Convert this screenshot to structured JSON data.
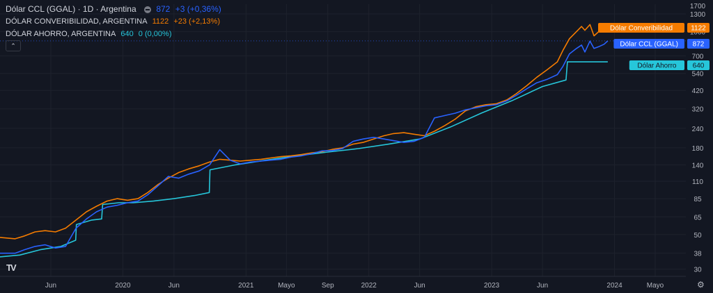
{
  "legend": {
    "main_title": "Dólar CCL (GGAL) · 1D · Argentina",
    "main_value": "872",
    "main_change": "+3 (+0,36%)",
    "conv_label": "DÓLAR CONVERIBILIDAD, ARGENTINA",
    "conv_value": "1122",
    "conv_change": "+23 (+2,13%)",
    "ahorro_label": "DÓLAR AHORRO, ARGENTINA",
    "ahorro_value": "640",
    "ahorro_change": "0 (0,00%)",
    "collapse_icon": "chevron-up-icon"
  },
  "colors": {
    "background": "#131722",
    "grid": "#1e222d",
    "ccl": "#2962ff",
    "conv": "#f57c00",
    "ahorro": "#26c6da",
    "axis_text": "#b2b5be"
  },
  "chart_data": {
    "type": "line",
    "y_scale": "log",
    "ylim": [
      27,
      1500
    ],
    "xlim": [
      "2019-01-01",
      "2024-07-31"
    ],
    "y_ticks": [
      30,
      38,
      50,
      65,
      85,
      110,
      140,
      180,
      240,
      320,
      420,
      540,
      700,
      1000,
      1300
    ],
    "y_tick_labels": [
      "30",
      "38",
      "50",
      "65",
      "85",
      "110",
      "140",
      "180",
      "240",
      "320",
      "420",
      "540",
      "700",
      "1000",
      "1300"
    ],
    "top_tick_label": "1700",
    "x_ticks": [
      {
        "date": "2019-06-01",
        "label": "Jun"
      },
      {
        "date": "2020-01-01",
        "label": "2020"
      },
      {
        "date": "2020-06-01",
        "label": "Jun"
      },
      {
        "date": "2021-01-01",
        "label": "2021"
      },
      {
        "date": "2021-05-01",
        "label": "Mayo"
      },
      {
        "date": "2021-09-01",
        "label": "Sep"
      },
      {
        "date": "2022-01-01",
        "label": "2022"
      },
      {
        "date": "2022-06-01",
        "label": "Jun"
      },
      {
        "date": "2023-01-01",
        "label": "2023"
      },
      {
        "date": "2023-06-01",
        "label": "Jun"
      },
      {
        "date": "2024-01-01",
        "label": "2024"
      },
      {
        "date": "2024-05-01",
        "label": "Mayo"
      }
    ],
    "series": [
      {
        "name": "Dólar Converibilidad",
        "last": "1122",
        "points": [
          [
            "2019-01-01",
            48
          ],
          [
            "2019-02-15",
            47
          ],
          [
            "2019-03-15",
            49
          ],
          [
            "2019-04-15",
            52
          ],
          [
            "2019-05-15",
            53
          ],
          [
            "2019-06-15",
            52
          ],
          [
            "2019-07-15",
            55
          ],
          [
            "2019-08-15",
            62
          ],
          [
            "2019-09-15",
            70
          ],
          [
            "2019-10-15",
            76
          ],
          [
            "2019-11-15",
            82
          ],
          [
            "2019-12-15",
            85
          ],
          [
            "2020-01-15",
            83
          ],
          [
            "2020-02-15",
            85
          ],
          [
            "2020-03-15",
            93
          ],
          [
            "2020-04-15",
            105
          ],
          [
            "2020-05-15",
            115
          ],
          [
            "2020-06-15",
            125
          ],
          [
            "2020-07-15",
            132
          ],
          [
            "2020-08-15",
            138
          ],
          [
            "2020-09-15",
            146
          ],
          [
            "2020-10-15",
            152
          ],
          [
            "2020-11-15",
            150
          ],
          [
            "2020-12-15",
            148
          ],
          [
            "2021-01-15",
            150
          ],
          [
            "2021-02-15",
            152
          ],
          [
            "2021-03-15",
            155
          ],
          [
            "2021-04-15",
            158
          ],
          [
            "2021-05-15",
            160
          ],
          [
            "2021-06-15",
            163
          ],
          [
            "2021-07-15",
            167
          ],
          [
            "2021-08-15",
            170
          ],
          [
            "2021-09-15",
            176
          ],
          [
            "2021-10-15",
            180
          ],
          [
            "2021-11-15",
            190
          ],
          [
            "2021-12-15",
            195
          ],
          [
            "2022-01-15",
            205
          ],
          [
            "2022-02-15",
            215
          ],
          [
            "2022-03-15",
            222
          ],
          [
            "2022-04-15",
            225
          ],
          [
            "2022-05-15",
            220
          ],
          [
            "2022-06-15",
            215
          ],
          [
            "2022-07-15",
            230
          ],
          [
            "2022-08-15",
            250
          ],
          [
            "2022-09-15",
            275
          ],
          [
            "2022-10-15",
            310
          ],
          [
            "2022-11-15",
            330
          ],
          [
            "2022-12-15",
            340
          ],
          [
            "2023-01-15",
            345
          ],
          [
            "2023-02-15",
            365
          ],
          [
            "2023-03-15",
            400
          ],
          [
            "2023-04-15",
            450
          ],
          [
            "2023-05-15",
            510
          ],
          [
            "2023-06-15",
            570
          ],
          [
            "2023-07-15",
            640
          ],
          [
            "2023-08-01",
            760
          ],
          [
            "2023-08-20",
            900
          ],
          [
            "2023-09-10",
            1000
          ],
          [
            "2023-09-25",
            1080
          ],
          [
            "2023-10-05",
            1020
          ],
          [
            "2023-10-20",
            1110
          ],
          [
            "2023-11-01",
            940
          ],
          [
            "2023-11-15",
            1000
          ],
          [
            "2023-12-01",
            1060
          ],
          [
            "2023-12-12",
            1122
          ]
        ]
      },
      {
        "name": "Dólar CCL (GGAL)",
        "last": "872",
        "points": [
          [
            "2019-01-01",
            38
          ],
          [
            "2019-02-15",
            38
          ],
          [
            "2019-03-15",
            40
          ],
          [
            "2019-04-15",
            42
          ],
          [
            "2019-05-15",
            43
          ],
          [
            "2019-06-15",
            41
          ],
          [
            "2019-07-15",
            42
          ],
          [
            "2019-08-15",
            55
          ],
          [
            "2019-09-15",
            63
          ],
          [
            "2019-10-15",
            70
          ],
          [
            "2019-11-15",
            75
          ],
          [
            "2019-12-15",
            77
          ],
          [
            "2020-01-15",
            80
          ],
          [
            "2020-02-15",
            82
          ],
          [
            "2020-03-15",
            90
          ],
          [
            "2020-04-15",
            103
          ],
          [
            "2020-05-15",
            118
          ],
          [
            "2020-06-15",
            115
          ],
          [
            "2020-07-15",
            122
          ],
          [
            "2020-08-15",
            128
          ],
          [
            "2020-09-15",
            140
          ],
          [
            "2020-10-15",
            175
          ],
          [
            "2020-11-15",
            150
          ],
          [
            "2020-12-15",
            142
          ],
          [
            "2021-01-15",
            146
          ],
          [
            "2021-02-15",
            148
          ],
          [
            "2021-03-15",
            150
          ],
          [
            "2021-04-15",
            152
          ],
          [
            "2021-05-15",
            157
          ],
          [
            "2021-06-15",
            160
          ],
          [
            "2021-07-15",
            165
          ],
          [
            "2021-08-15",
            172
          ],
          [
            "2021-09-15",
            173
          ],
          [
            "2021-10-15",
            178
          ],
          [
            "2021-11-15",
            198
          ],
          [
            "2021-12-15",
            205
          ],
          [
            "2022-01-15",
            210
          ],
          [
            "2022-02-15",
            205
          ],
          [
            "2022-03-15",
            200
          ],
          [
            "2022-04-15",
            195
          ],
          [
            "2022-05-15",
            198
          ],
          [
            "2022-06-15",
            210
          ],
          [
            "2022-07-15",
            280
          ],
          [
            "2022-08-15",
            290
          ],
          [
            "2022-09-15",
            300
          ],
          [
            "2022-10-15",
            315
          ],
          [
            "2022-11-15",
            325
          ],
          [
            "2022-12-15",
            335
          ],
          [
            "2023-01-15",
            340
          ],
          [
            "2023-02-15",
            360
          ],
          [
            "2023-03-15",
            390
          ],
          [
            "2023-04-15",
            430
          ],
          [
            "2023-05-15",
            470
          ],
          [
            "2023-06-15",
            495
          ],
          [
            "2023-07-15",
            530
          ],
          [
            "2023-08-01",
            600
          ],
          [
            "2023-08-20",
            720
          ],
          [
            "2023-09-10",
            780
          ],
          [
            "2023-09-25",
            820
          ],
          [
            "2023-10-05",
            740
          ],
          [
            "2023-10-20",
            870
          ],
          [
            "2023-11-01",
            780
          ],
          [
            "2023-11-15",
            800
          ],
          [
            "2023-12-01",
            830
          ],
          [
            "2023-12-12",
            872
          ]
        ]
      },
      {
        "name": "Dólar Ahorro",
        "last": "640",
        "points": [
          [
            "2019-01-01",
            36
          ],
          [
            "2019-03-01",
            37
          ],
          [
            "2019-05-01",
            40
          ],
          [
            "2019-07-01",
            42
          ],
          [
            "2019-08-14",
            46
          ],
          [
            "2019-08-16",
            58
          ],
          [
            "2019-10-01",
            62
          ],
          [
            "2019-10-30",
            63
          ],
          [
            "2019-11-02",
            78
          ],
          [
            "2019-12-20",
            80
          ],
          [
            "2020-02-01",
            80
          ],
          [
            "2020-04-01",
            82
          ],
          [
            "2020-06-01",
            85
          ],
          [
            "2020-08-01",
            89
          ],
          [
            "2020-09-14",
            93
          ],
          [
            "2020-09-16",
            130
          ],
          [
            "2020-12-01",
            140
          ],
          [
            "2021-03-01",
            150
          ],
          [
            "2021-06-01",
            160
          ],
          [
            "2021-09-01",
            169
          ],
          [
            "2021-12-01",
            178
          ],
          [
            "2022-03-01",
            190
          ],
          [
            "2022-06-01",
            205
          ],
          [
            "2022-09-01",
            245
          ],
          [
            "2022-12-01",
            300
          ],
          [
            "2023-03-01",
            360
          ],
          [
            "2023-06-01",
            445
          ],
          [
            "2023-08-10",
            490
          ],
          [
            "2023-08-14",
            640
          ],
          [
            "2023-10-01",
            640
          ],
          [
            "2023-12-12",
            640
          ]
        ]
      }
    ]
  }
}
